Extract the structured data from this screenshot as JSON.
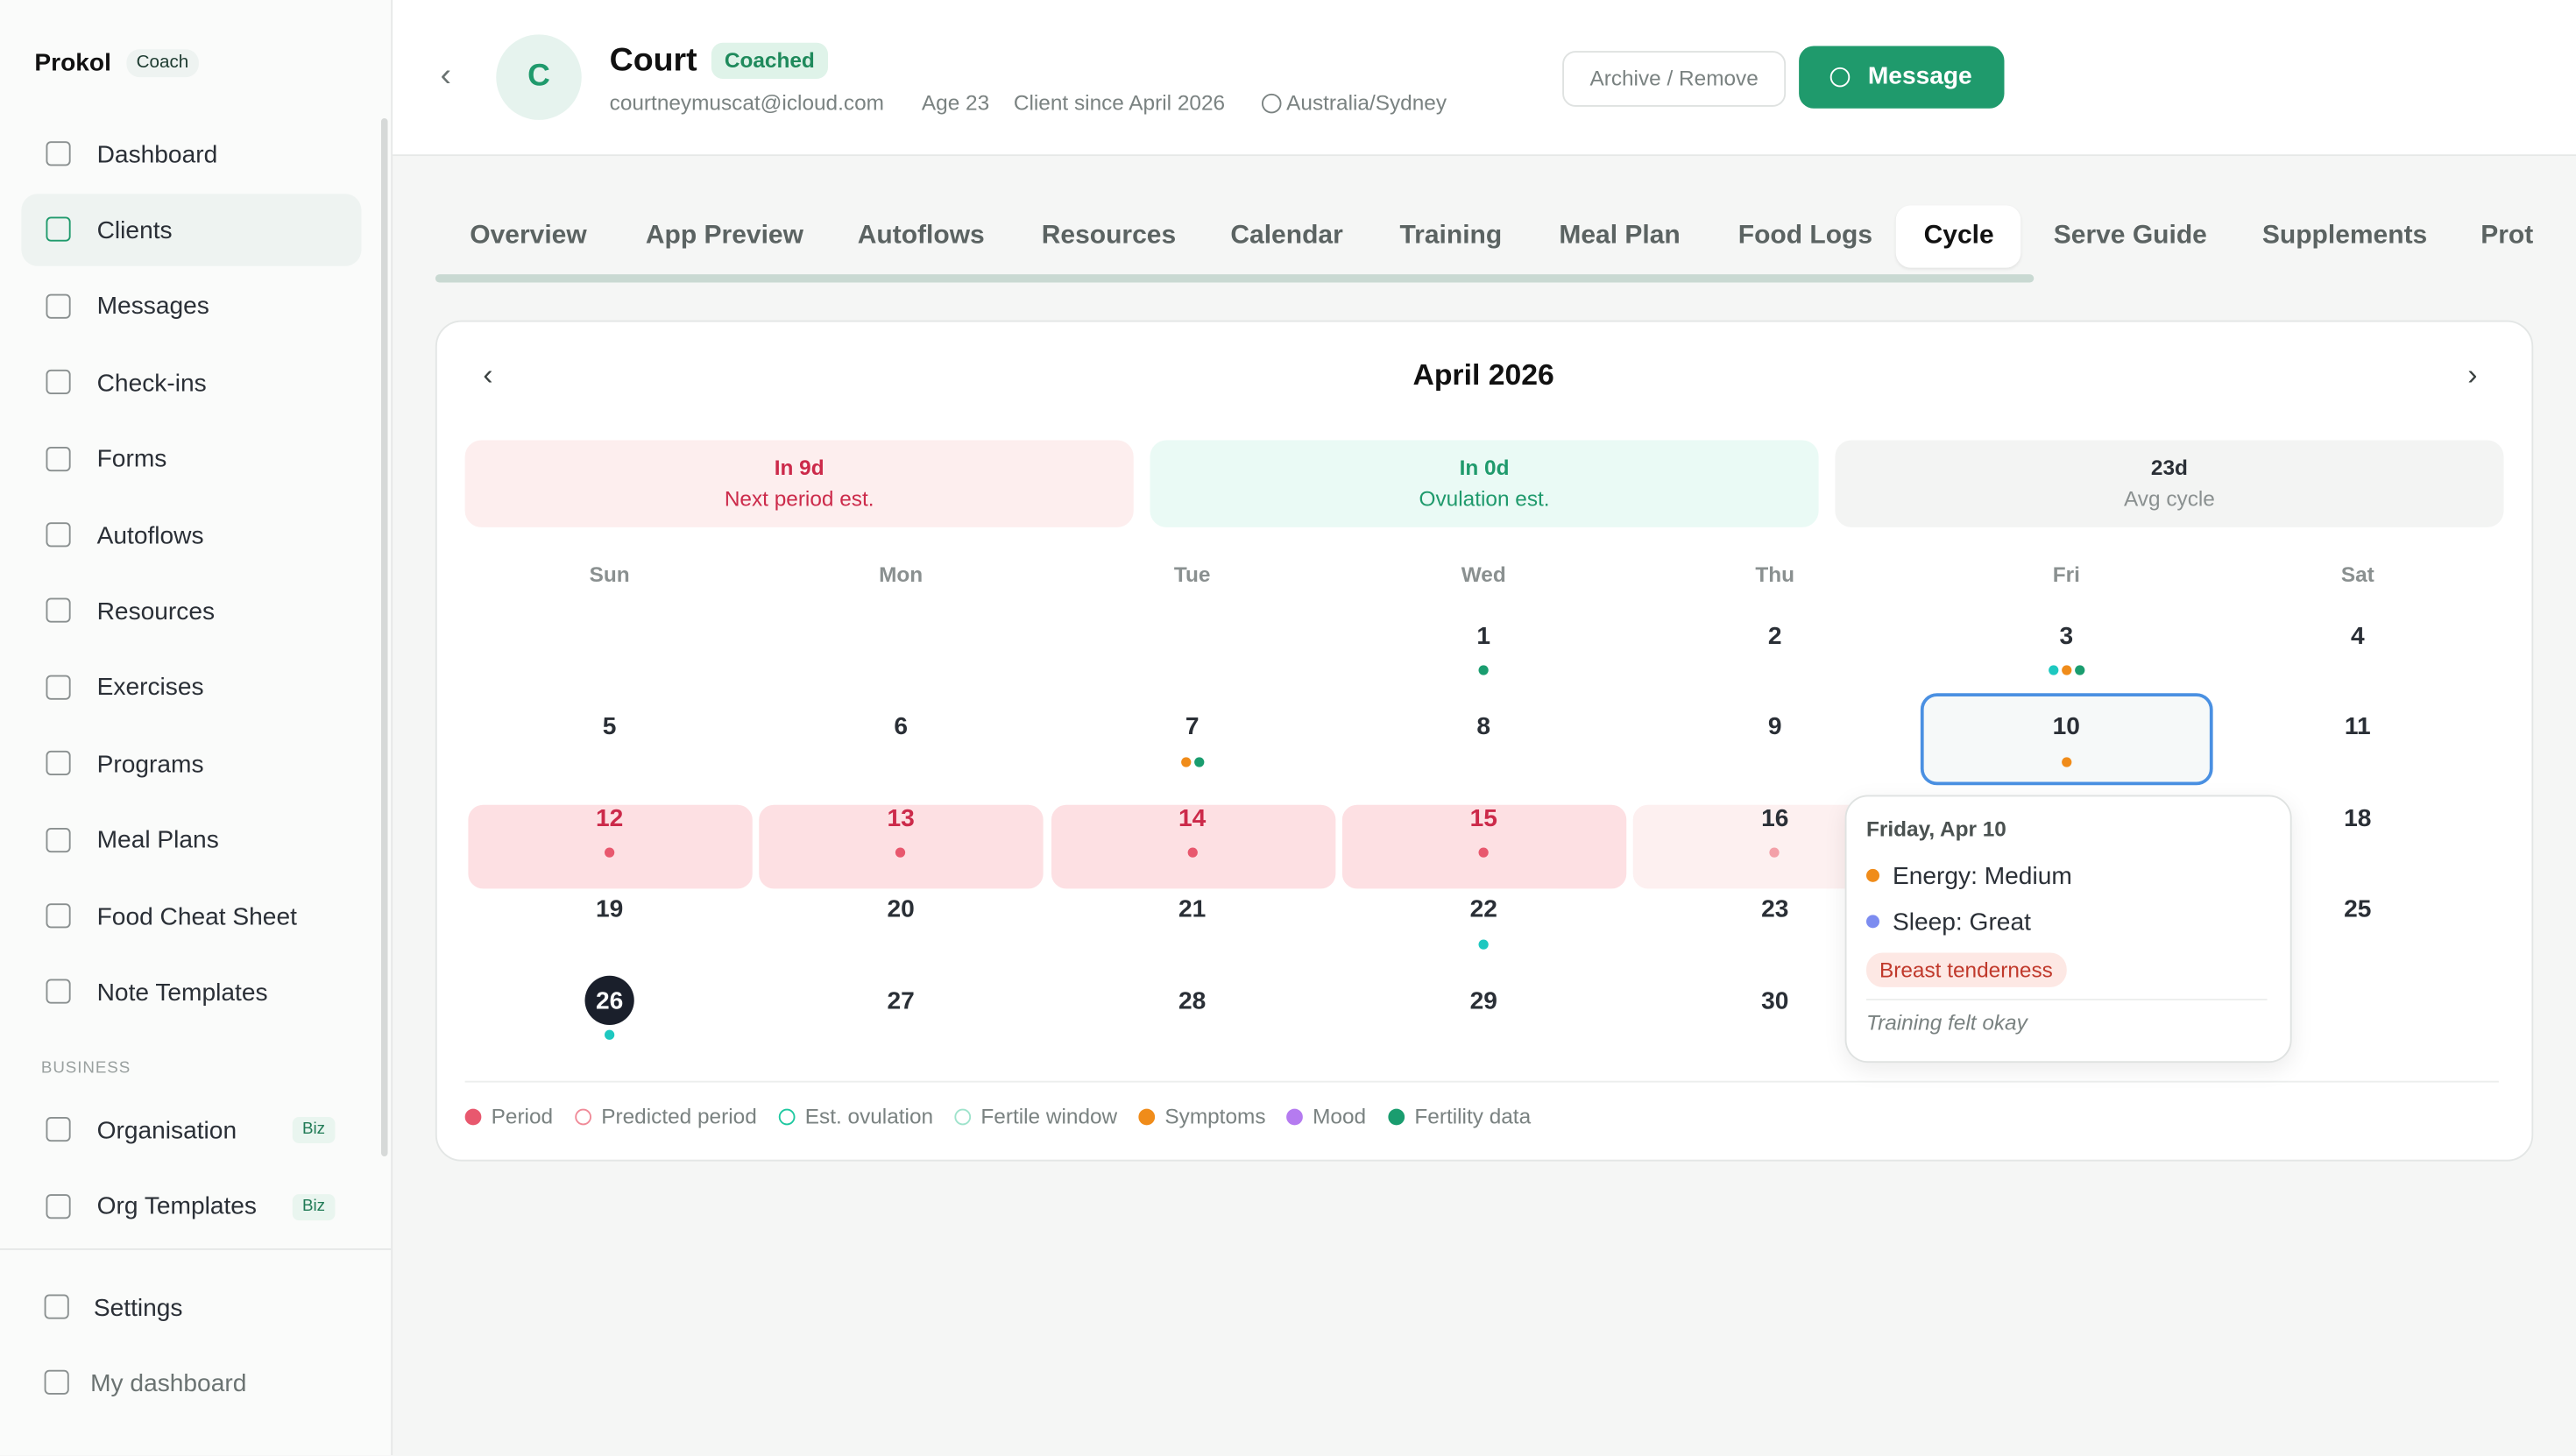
{
  "sidebar": {
    "brand": "Prokol",
    "badge": "Coach",
    "nav": [
      "Dashboard",
      "Clients",
      "Messages",
      "Check-ins",
      "Forms",
      "Autoflows",
      "Resources",
      "Exercises",
      "Programs",
      "Meal Plans",
      "Food Cheat Sheet",
      "Note Templates"
    ],
    "active_nav": 1,
    "section": "BUSINESS",
    "biz_nav": [
      {
        "label": "Organisation",
        "badge": "Biz"
      },
      {
        "label": "Org Templates",
        "badge": "Biz"
      }
    ],
    "footer": [
      "Settings",
      "My dashboard"
    ]
  },
  "header": {
    "initial": "C",
    "name": "Court",
    "status": "Coached",
    "email": "courtneymuscat@icloud.com",
    "age": "Age 23",
    "since": "Client since April 2026",
    "timezone": "Australia/Sydney",
    "archive": "Archive / Remove",
    "message": "Message"
  },
  "tabs": [
    "Overview",
    "App Preview",
    "Autoflows",
    "Resources",
    "Calendar",
    "Training",
    "Meal Plan",
    "Food Logs",
    "Cycle",
    "Serve Guide",
    "Supplements",
    "Prot"
  ],
  "active_tab": 8,
  "calendar": {
    "month": "April 2026",
    "stats": [
      {
        "value": "In 9d",
        "label": "Next period est.",
        "color": "#cc2a4a",
        "bg": "#fdeeee"
      },
      {
        "value": "In 0d",
        "label": "Ovulation est.",
        "color": "#1f9a6c",
        "bg": "#eafaf5"
      },
      {
        "value": "23d",
        "label": "Avg cycle",
        "color": "#2a2f36",
        "bg": "#f3f4f3"
      }
    ],
    "weekdays": [
      "Sun",
      "Mon",
      "Tue",
      "Wed",
      "Thu",
      "Fri",
      "Sat"
    ],
    "weeks": [
      [
        null,
        null,
        null,
        {
          "day": 1,
          "dots": [
            "#1a9d6f"
          ]
        },
        {
          "day": 2
        },
        {
          "day": 3,
          "dots": [
            "#1ec8c0",
            "#f08c1a",
            "#1a9d6f"
          ]
        },
        {
          "day": 4
        }
      ],
      [
        {
          "day": 5
        },
        {
          "day": 6
        },
        {
          "day": 7,
          "dots": [
            "#f08c1a",
            "#1a9d6f"
          ]
        },
        {
          "day": 8
        },
        {
          "day": 9
        },
        {
          "day": 10,
          "dots": [
            "#f08c1a"
          ],
          "state": "selected"
        },
        {
          "day": 11
        }
      ],
      [
        {
          "day": 12,
          "dots": [
            "#e8586e"
          ],
          "state": "period"
        },
        {
          "day": 13,
          "dots": [
            "#e8586e"
          ],
          "state": "period"
        },
        {
          "day": 14,
          "dots": [
            "#e8586e"
          ],
          "state": "period"
        },
        {
          "day": 15,
          "dots": [
            "#e8586e"
          ],
          "state": "period"
        },
        {
          "day": 16,
          "dots": [
            "#f3a0a8"
          ],
          "state": "predicted"
        },
        null,
        {
          "day": 18
        }
      ],
      [
        {
          "day": 19
        },
        {
          "day": 20
        },
        {
          "day": 21
        },
        {
          "day": 22,
          "dots": [
            "#1ec8c0"
          ]
        },
        {
          "day": 23
        },
        null,
        {
          "day": 25
        }
      ],
      [
        {
          "day": 26,
          "dots": [
            "#1ec8c0"
          ],
          "state": "today"
        },
        {
          "day": 27
        },
        {
          "day": 28
        },
        {
          "day": 29
        },
        {
          "day": 30
        },
        null,
        null
      ]
    ],
    "tooltip": {
      "title": "Friday, Apr 10",
      "items": [
        {
          "label": "Energy: Medium",
          "color": "#f08c1a"
        },
        {
          "label": "Sleep: Great",
          "color": "#7c8cf0"
        }
      ],
      "tag": "Breast tenderness",
      "note": "Training felt okay"
    },
    "legend": [
      {
        "label": "Period",
        "color": "#e8586e",
        "hollow": false
      },
      {
        "label": "Predicted period",
        "color": "#f08a98",
        "hollow": true
      },
      {
        "label": "Est. ovulation",
        "color": "#1ec8a0",
        "hollow": true
      },
      {
        "label": "Fertile window",
        "color": "#9fe3cc",
        "hollow": true
      },
      {
        "label": "Symptoms",
        "color": "#f08c1a",
        "hollow": false
      },
      {
        "label": "Mood",
        "color": "#b57bf0",
        "hollow": false
      },
      {
        "label": "Fertility data",
        "color": "#1a9d6f",
        "hollow": false
      }
    ]
  }
}
